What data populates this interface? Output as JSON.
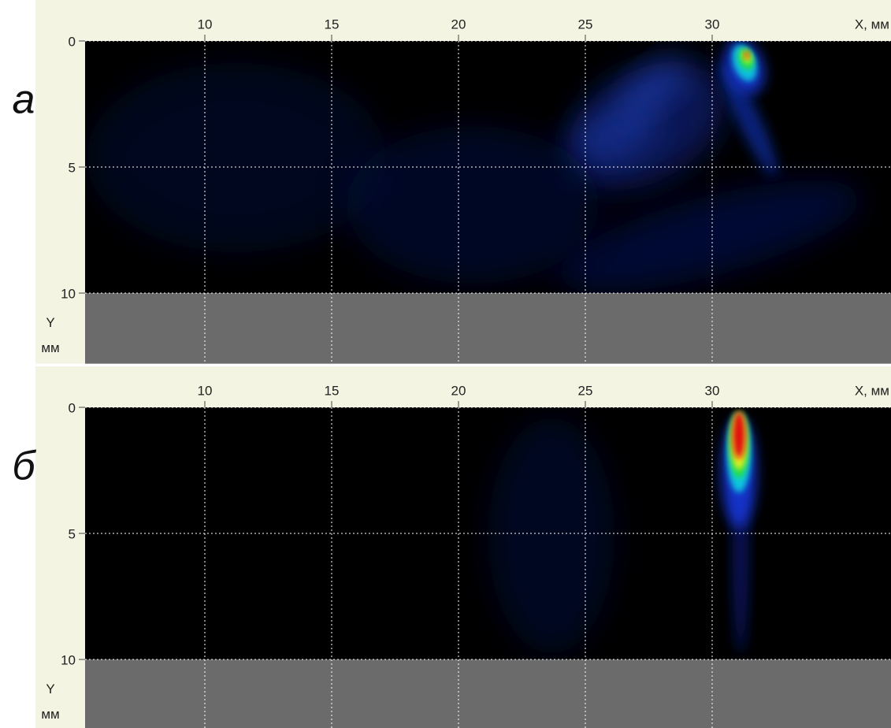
{
  "chart_data": [
    {
      "type": "heatmap",
      "panel_label": "а",
      "xlabel": "X, мм",
      "ylabel": [
        "Y",
        "мм"
      ],
      "xlim": [
        5.28,
        37.05
      ],
      "ylim": [
        0,
        12.8
      ],
      "xticks": [
        10,
        15,
        20,
        25,
        30
      ],
      "yticks": [
        0,
        5,
        10
      ],
      "grid": true
    },
    {
      "type": "heatmap",
      "panel_label": "б",
      "xlabel": "X, мм",
      "ylabel": [
        "Y",
        "мм"
      ],
      "xlim": [
        5.28,
        37.05
      ],
      "ylim": [
        0,
        12.8
      ],
      "xticks": [
        10,
        15,
        20,
        25,
        30
      ],
      "yticks": [
        0,
        5,
        10
      ],
      "grid": true
    }
  ]
}
